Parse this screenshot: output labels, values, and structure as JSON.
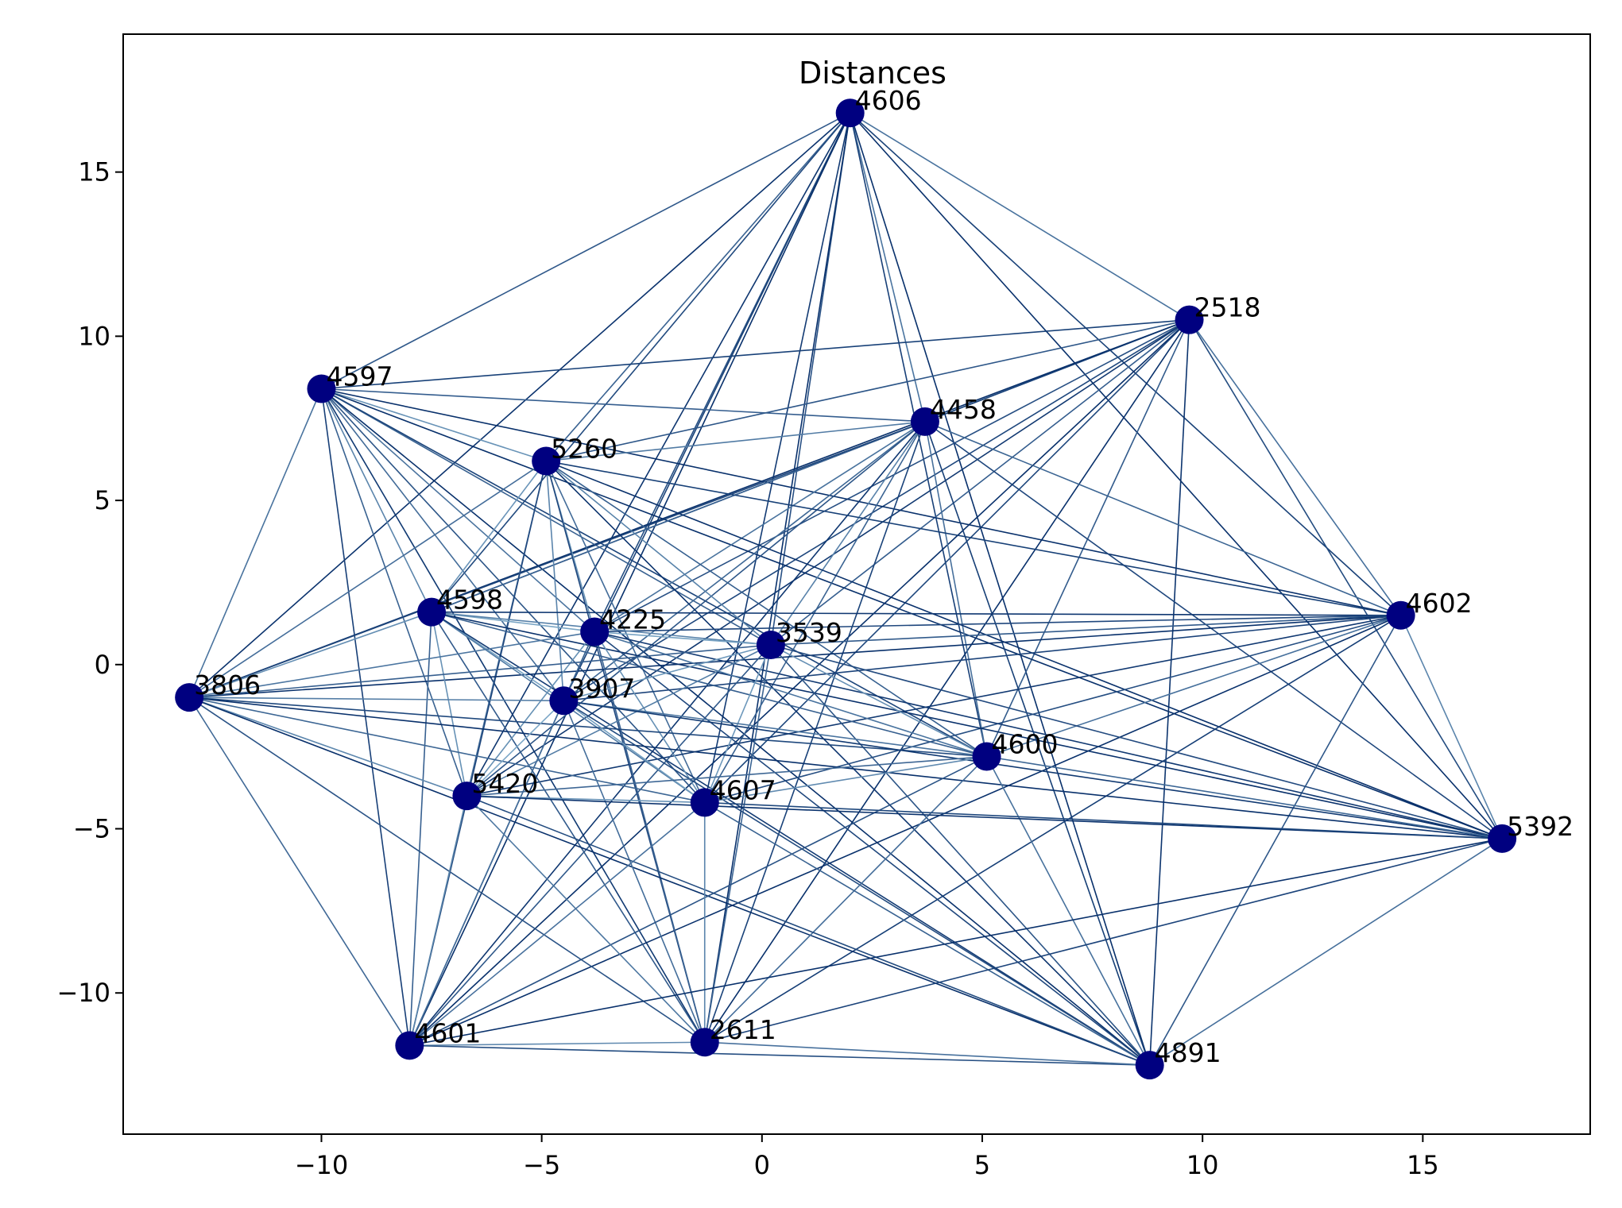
{
  "chart_data": {
    "type": "scatter",
    "title": "Distances",
    "xlabel": "",
    "ylabel": "",
    "xlim": [
      -14.5,
      18.8
    ],
    "ylim": [
      -14.3,
      19.2
    ],
    "xticks": [
      -10,
      -5,
      0,
      5,
      10,
      15
    ],
    "yticks": [
      -10,
      -5,
      0,
      5,
      10,
      15
    ],
    "xtick_labels": [
      "−10",
      "−5",
      "0",
      "5",
      "10",
      "15"
    ],
    "ytick_labels": [
      "−10",
      "−5",
      "0",
      "5",
      "10",
      "15"
    ],
    "grid": false,
    "node_color": "#000080",
    "edge_color_dark": "#08306b",
    "edge_color_light": "#9ecae1",
    "nodes": [
      {
        "label": "4606",
        "x": 2.0,
        "y": 16.8
      },
      {
        "label": "2518",
        "x": 9.7,
        "y": 10.5
      },
      {
        "label": "4597",
        "x": -10.0,
        "y": 8.4
      },
      {
        "label": "4458",
        "x": 3.7,
        "y": 7.4
      },
      {
        "label": "5260",
        "x": -4.9,
        "y": 6.2
      },
      {
        "label": "4602",
        "x": 14.5,
        "y": 1.5
      },
      {
        "label": "4598",
        "x": -7.5,
        "y": 1.6
      },
      {
        "label": "4225",
        "x": -3.8,
        "y": 1.0
      },
      {
        "label": "3539",
        "x": 0.2,
        "y": 0.6
      },
      {
        "label": "3806",
        "x": -13.0,
        "y": -1.0
      },
      {
        "label": "3907",
        "x": -4.5,
        "y": -1.1
      },
      {
        "label": "4600",
        "x": 5.1,
        "y": -2.8
      },
      {
        "label": "5420",
        "x": -6.7,
        "y": -4.0
      },
      {
        "label": "4607",
        "x": -1.3,
        "y": -4.2
      },
      {
        "label": "5392",
        "x": 16.8,
        "y": -5.3
      },
      {
        "label": "4601",
        "x": -8.0,
        "y": -11.6
      },
      {
        "label": "2611",
        "x": -1.3,
        "y": -11.5
      },
      {
        "label": "4891",
        "x": 8.8,
        "y": -12.2
      }
    ]
  }
}
